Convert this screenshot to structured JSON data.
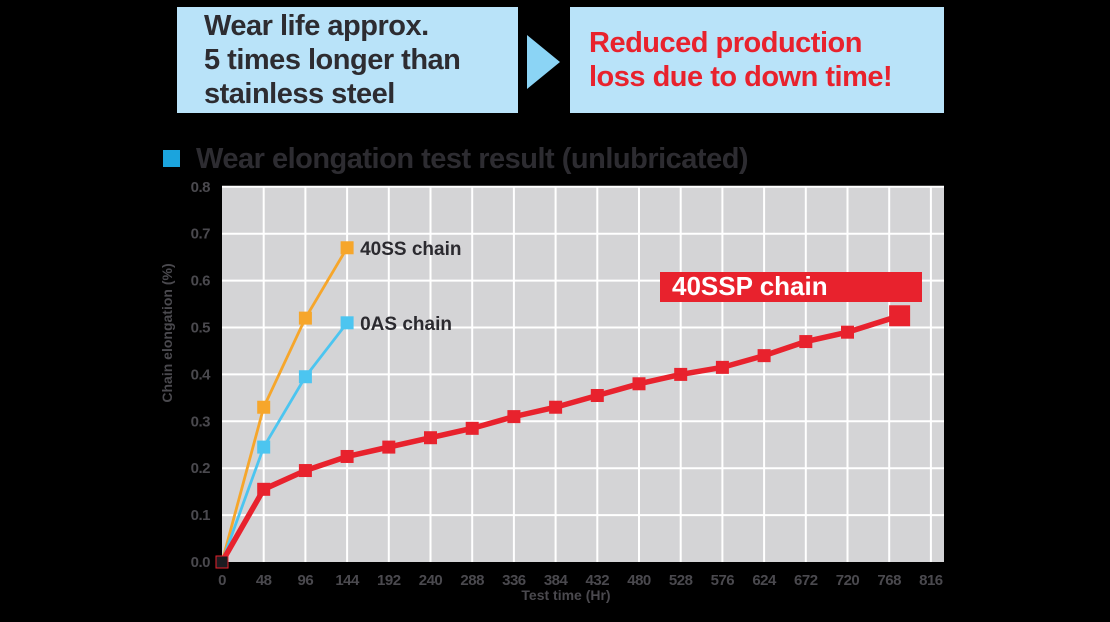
{
  "banner": {
    "left_box": {
      "lines": [
        "Wear life approx.",
        "5 times longer than",
        "stainless steel"
      ],
      "bg_color": "#b9e3f9",
      "text_color": "#2d2c31"
    },
    "arrow_color": "#8bd4f5",
    "right_box": {
      "lines": [
        "Reduced production",
        "loss due to down time!"
      ],
      "bg_color": "#b9e3f9",
      "text_color": "#e8222d"
    }
  },
  "section": {
    "bullet_color": "#1ba4dd",
    "title": "Wear elongation test result (unlubricated)"
  },
  "chart_data": {
    "type": "line",
    "title": "Wear elongation test result (unlubricated)",
    "xlabel": "Test time (Hr)",
    "ylabel": "Chain elongation (%)",
    "xlim": [
      0,
      816
    ],
    "ylim": [
      0.0,
      0.8
    ],
    "x_ticks": [
      0,
      48,
      96,
      144,
      192,
      240,
      288,
      336,
      384,
      432,
      480,
      528,
      576,
      624,
      672,
      720,
      768,
      816
    ],
    "y_ticks": [
      0.0,
      0.1,
      0.2,
      0.3,
      0.4,
      0.5,
      0.6,
      0.7,
      0.8
    ],
    "grid": true,
    "legend_position": "inline-labels",
    "plot_bg_color": "#d4d4d6",
    "grid_color": "#ffffff",
    "tick_color": "#4a494e",
    "axis_title_color": "#4a494e",
    "origin_marker_color": "#1d1c21",
    "series": [
      {
        "name": "40SS chain",
        "color": "#f6a62b",
        "label_style": "text",
        "label_color": "#2b2a2f",
        "line_width": 2.8,
        "marker_size": 13,
        "x": [
          0,
          48,
          96,
          144
        ],
        "values": [
          0,
          0.33,
          0.52,
          0.67
        ]
      },
      {
        "name": "0AS chain",
        "color": "#4cc5f0",
        "label_style": "text",
        "label_color": "#2b2a2f",
        "line_width": 2.8,
        "marker_size": 13,
        "x": [
          0,
          48,
          96,
          144
        ],
        "values": [
          0,
          0.245,
          0.395,
          0.51
        ]
      },
      {
        "name": "40SSP chain",
        "color": "#e8222d",
        "label_style": "box",
        "label_text_color": "#ffffff",
        "line_width": 5.5,
        "marker_size": 13,
        "end_marker_size": 21,
        "x": [
          0,
          48,
          96,
          144,
          192,
          240,
          288,
          336,
          384,
          432,
          480,
          528,
          576,
          624,
          672,
          720,
          780
        ],
        "values": [
          0,
          0.155,
          0.195,
          0.225,
          0.245,
          0.265,
          0.285,
          0.31,
          0.33,
          0.355,
          0.38,
          0.4,
          0.415,
          0.44,
          0.47,
          0.49,
          0.525
        ]
      }
    ]
  }
}
